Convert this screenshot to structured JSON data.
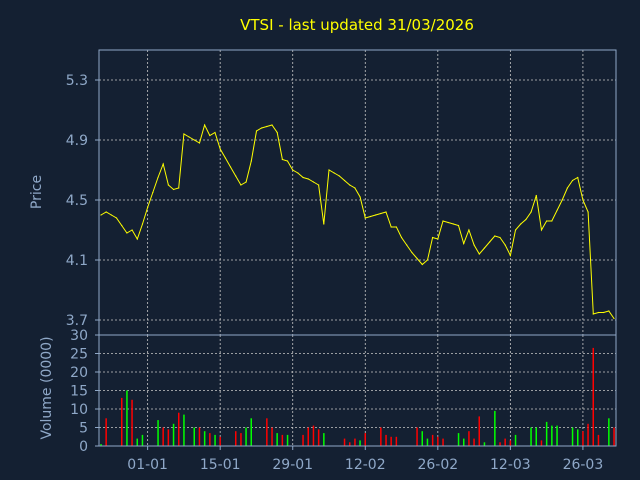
{
  "chart_data": {
    "type": "line",
    "title": "VTSI - last updated 31/03/2026",
    "price": {
      "ylabel": "Price",
      "ylim": [
        3.6,
        5.5
      ],
      "yticks": [
        "5.3",
        "4.9",
        "4.5",
        "4.1",
        "3.7"
      ],
      "ytick_values": [
        5.3,
        4.9,
        4.5,
        4.1,
        3.7
      ],
      "line_color": "#ffff00",
      "values": [
        4.4,
        4.42,
        4.4,
        4.38,
        4.33,
        4.28,
        4.3,
        4.24,
        4.34,
        4.45,
        4.55,
        4.65,
        4.74,
        4.6,
        4.57,
        4.58,
        4.94,
        4.92,
        4.9,
        4.88,
        5.0,
        4.93,
        4.95,
        4.84,
        4.78,
        4.72,
        4.66,
        4.6,
        4.62,
        4.76,
        4.96,
        4.98,
        4.99,
        5.0,
        4.95,
        4.77,
        4.76,
        4.7,
        4.68,
        4.65,
        4.64,
        4.62,
        4.6,
        4.34,
        4.7,
        4.68,
        4.66,
        4.63,
        4.6,
        4.58,
        4.52,
        4.38,
        4.39,
        4.4,
        4.41,
        4.42,
        4.32,
        4.32,
        4.25,
        4.2,
        4.15,
        4.11,
        4.07,
        4.1,
        4.25,
        4.24,
        4.36,
        4.35,
        4.34,
        4.33,
        4.21,
        4.3,
        4.2,
        4.14,
        4.18,
        4.22,
        4.26,
        4.25,
        4.2,
        4.13,
        4.3,
        4.34,
        4.37,
        4.42,
        4.53,
        4.3,
        4.36,
        4.36,
        4.43,
        4.5,
        4.58,
        4.63,
        4.65,
        4.5,
        4.42,
        3.74,
        3.75,
        3.75,
        3.76,
        3.71
      ]
    },
    "volume": {
      "ylabel": "Volume (0000)",
      "ylim": [
        0,
        30
      ],
      "yticks": [
        "30",
        "25",
        "20",
        "15",
        "10",
        "5",
        "0"
      ],
      "ytick_values": [
        30,
        25,
        20,
        15,
        10,
        5,
        0
      ],
      "up_color": "#00ff00",
      "down_color": "#ff0000",
      "values": [
        0.5,
        7.5,
        0,
        0,
        13,
        15,
        12.5,
        2,
        3,
        0,
        0,
        7,
        5,
        4.5,
        6,
        9,
        8.5,
        0,
        5,
        5,
        4,
        3.5,
        3,
        2.5,
        0,
        0,
        4,
        3.5,
        5,
        7.5,
        0,
        0,
        7.5,
        5,
        3.5,
        3,
        3,
        0,
        0,
        3,
        5,
        5.5,
        4.5,
        3.5,
        0,
        0,
        0,
        2,
        1,
        2,
        1.5,
        3.5,
        0,
        0,
        5,
        3,
        2.5,
        2.5,
        0,
        0,
        0,
        5,
        4,
        2,
        3,
        2.5,
        2,
        0,
        0,
        3.5,
        2,
        4,
        2,
        8,
        1,
        0,
        9.5,
        1,
        2,
        1.5,
        3,
        0,
        0,
        5,
        5,
        1.5,
        6.5,
        5.5,
        5.5,
        0,
        0,
        5,
        4.5,
        4,
        6,
        26.5,
        3,
        0,
        7.5,
        5
      ],
      "directions": [
        "up",
        "down",
        "up",
        "up",
        "down",
        "up",
        "down",
        "up",
        "up",
        "up",
        "up",
        "up",
        "down",
        "down",
        "up",
        "down",
        "up",
        "up",
        "up",
        "down",
        "up",
        "down",
        "up",
        "down",
        "up",
        "up",
        "down",
        "down",
        "up",
        "up",
        "up",
        "up",
        "down",
        "down",
        "up",
        "down",
        "up",
        "up",
        "up",
        "down",
        "down",
        "down",
        "down",
        "up",
        "up",
        "up",
        "up",
        "down",
        "down",
        "down",
        "up",
        "down",
        "down",
        "down",
        "down",
        "down",
        "down",
        "down",
        "down",
        "down",
        "down",
        "down",
        "up",
        "up",
        "down",
        "down",
        "down",
        "up",
        "up",
        "up",
        "up",
        "down",
        "down",
        "down",
        "up",
        "up",
        "up",
        "down",
        "down",
        "down",
        "up",
        "up",
        "up",
        "up",
        "up",
        "down",
        "up",
        "up",
        "up",
        "up",
        "up",
        "up",
        "up",
        "down",
        "down",
        "down",
        "down",
        "down",
        "up",
        "down"
      ]
    },
    "x_labels": [
      "01-01",
      "15-01",
      "29-01",
      "12-02",
      "26-02",
      "12-03",
      "26-03"
    ],
    "x_label_indices": [
      9,
      23,
      37,
      51,
      65,
      79,
      93
    ],
    "grid": true
  }
}
